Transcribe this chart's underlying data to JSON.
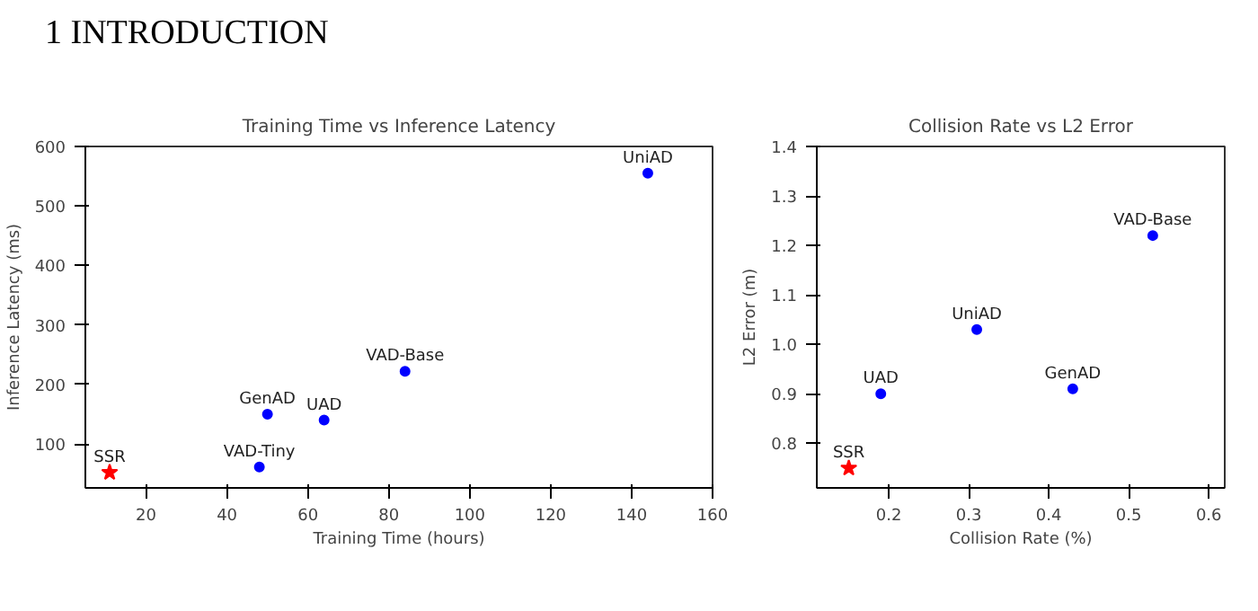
{
  "chart_data": [
    {
      "type": "scatter",
      "title": "Training Time vs Inference Latency",
      "xlabel": "Training Time (hours)",
      "ylabel": "Inference Latency (ms)",
      "annotations": [
        "1 INTRODUCTION"
      ],
      "xlim": [
        5,
        160
      ],
      "ylim": [
        26,
        600
      ],
      "xticks": [
        20,
        40,
        60,
        80,
        100,
        120,
        140,
        160
      ],
      "yticks": [
        100,
        200,
        300,
        400,
        500,
        600
      ],
      "grid": false,
      "series": [
        {
          "name": "SSR",
          "color": "#ff0000",
          "marker": "star",
          "x": [
            11
          ],
          "values": [
            52
          ]
        },
        {
          "name": "VAD-Tiny",
          "color": "#0000ff",
          "marker": "circle",
          "x": [
            48
          ],
          "values": [
            61
          ]
        },
        {
          "name": "GenAD",
          "color": "#0000ff",
          "marker": "circle",
          "x": [
            50
          ],
          "values": [
            150
          ]
        },
        {
          "name": "UAD",
          "color": "#0000ff",
          "marker": "circle",
          "x": [
            64
          ],
          "values": [
            140
          ]
        },
        {
          "name": "VAD-Base",
          "color": "#0000ff",
          "marker": "circle",
          "x": [
            84
          ],
          "values": [
            222
          ]
        },
        {
          "name": "UniAD",
          "color": "#0000ff",
          "marker": "circle",
          "x": [
            144
          ],
          "values": [
            555
          ]
        }
      ]
    },
    {
      "type": "scatter",
      "title": "Collision Rate vs L2 Error",
      "xlabel": "Collision Rate (%)",
      "ylabel": "L2 Error (m)",
      "xlim": [
        0.11,
        0.62
      ],
      "ylim": [
        0.71,
        1.4
      ],
      "xticks": [
        0.2,
        0.3,
        0.4,
        0.5,
        0.6
      ],
      "yticks": [
        0.8,
        0.9,
        {
          "value": 1.0,
          "label": "1.0"
        },
        1.1,
        1.2,
        1.3,
        1.4
      ],
      "grid": false,
      "series": [
        {
          "name": "SSR",
          "color": "#ff0000",
          "marker": "star",
          "x": [
            0.15
          ],
          "values": [
            0.75
          ]
        },
        {
          "name": "UAD",
          "color": "#0000ff",
          "marker": "circle",
          "x": [
            0.19
          ],
          "values": [
            0.9
          ]
        },
        {
          "name": "UniAD",
          "color": "#0000ff",
          "marker": "circle",
          "x": [
            0.31
          ],
          "values": [
            1.03
          ]
        },
        {
          "name": "GenAD",
          "color": "#0000ff",
          "marker": "circle",
          "x": [
            0.43
          ],
          "values": [
            0.91
          ]
        },
        {
          "name": "VAD-Base",
          "color": "#0000ff",
          "marker": "circle",
          "x": [
            0.53
          ],
          "values": [
            1.22
          ]
        }
      ]
    }
  ]
}
